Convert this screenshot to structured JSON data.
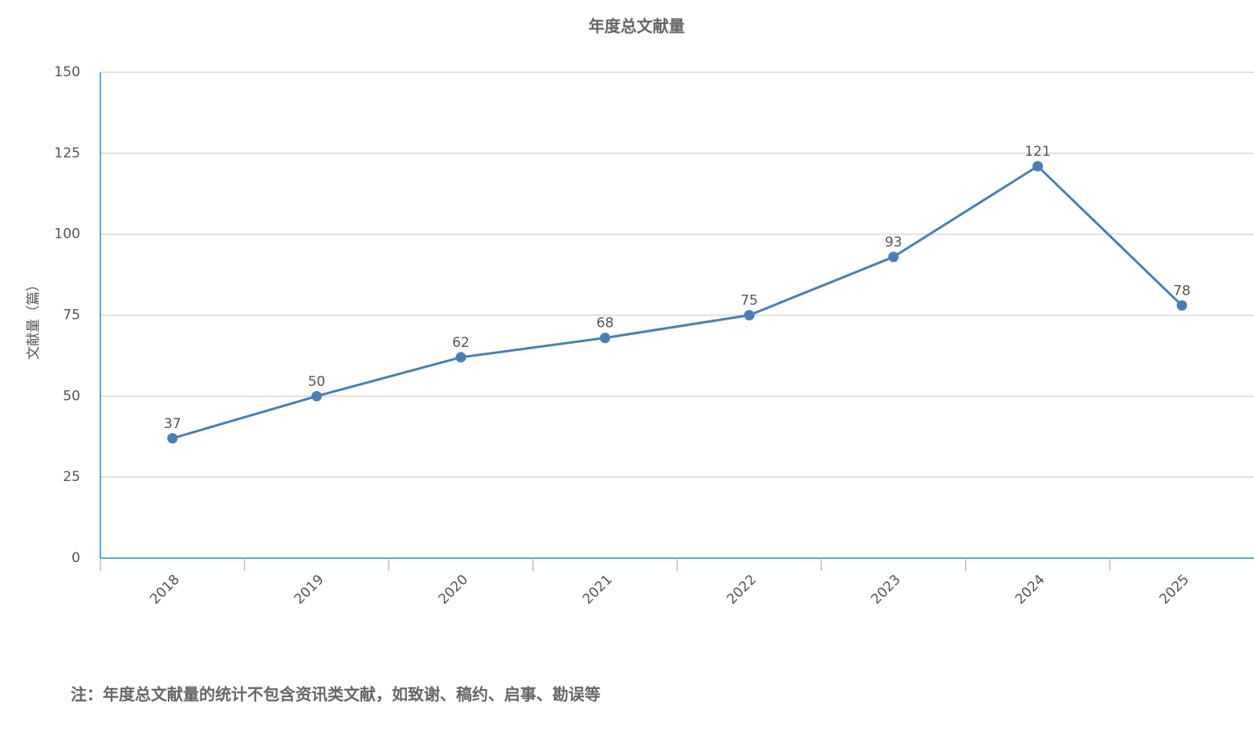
{
  "chart_data": {
    "type": "line",
    "title": "年度总文献量",
    "y_label": "文献量（篇）",
    "note": "注：年度总文献量的统计不包含资讯类文献，如致谢、稿约、启事、勘误等",
    "categories": [
      "2018",
      "2019",
      "2020",
      "2021",
      "2022",
      "2023",
      "2024",
      "2025"
    ],
    "series": [
      {
        "color": "#4a7fb5",
        "values": [
          37,
          50,
          62,
          68,
          75,
          93,
          121,
          78
        ]
      }
    ],
    "ylim": [
      0,
      150
    ],
    "yticks": [
      0,
      25,
      50,
      75,
      100,
      125,
      150
    ],
    "grid": true,
    "show_value_labels": true
  }
}
